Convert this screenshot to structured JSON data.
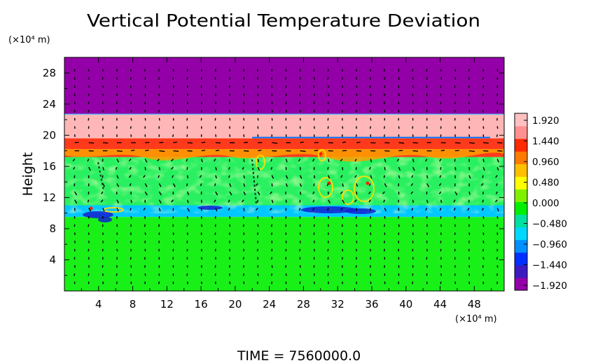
{
  "chart_data": {
    "type": "heatmap",
    "title": "Vertical Potential Temperature Deviation",
    "ylabel": "Height",
    "y_unit": "(×10⁴ m)",
    "x_unit": "(×10⁴ m)",
    "time_label": "TIME  =  7560000.0",
    "xlim": [
      0,
      51.5
    ],
    "ylim": [
      0,
      30
    ],
    "x_ticks": [
      "4",
      "8",
      "12",
      "16",
      "20",
      "24",
      "28",
      "32",
      "36",
      "40",
      "44",
      "48"
    ],
    "y_ticks": [
      "4",
      "8",
      "12",
      "16",
      "20",
      "24",
      "28"
    ],
    "colorbar": {
      "labels": [
        "1.920",
        "1.440",
        "0.960",
        "0.480",
        "0.000",
        "−0.480",
        "−0.960",
        "−1.440",
        "−1.920"
      ],
      "values": [
        1.92,
        1.44,
        0.96,
        0.48,
        0.0,
        -0.48,
        -0.96,
        -1.44,
        -1.92
      ],
      "colors": [
        "#9400a8",
        "#3c1cc0",
        "#0030ff",
        "#0090ff",
        "#00d8ff",
        "#00e0a0",
        "#00f000",
        "#80f000",
        "#ffff00",
        "#ffc000",
        "#ff7a00",
        "#ff2a00",
        "#ff9090",
        "#ffc0c0"
      ]
    },
    "layers": [
      {
        "name": "upper layer",
        "y_range": [
          22.7,
          30
        ],
        "value": -1.92,
        "color": "#9400a8"
      },
      {
        "name": "pink layer",
        "y_range": [
          19.6,
          22.7
        ],
        "value": 1.92,
        "color": "#ffb6b6"
      },
      {
        "name": "red band",
        "y_range": [
          17.2,
          19.6
        ],
        "value": 1.6,
        "color": "#ff3a1c"
      },
      {
        "name": "turbulent layer",
        "y_range": [
          10.0,
          17.2
        ],
        "value": 0.1,
        "color": "#28f060"
      },
      {
        "name": "blue band",
        "y_range": [
          9.5,
          11.0
        ],
        "value": -0.8,
        "color": "#00c8ff"
      },
      {
        "name": "lower layer",
        "y_range": [
          0,
          9.5
        ],
        "value": 0.0,
        "color": "#18f018"
      }
    ]
  }
}
